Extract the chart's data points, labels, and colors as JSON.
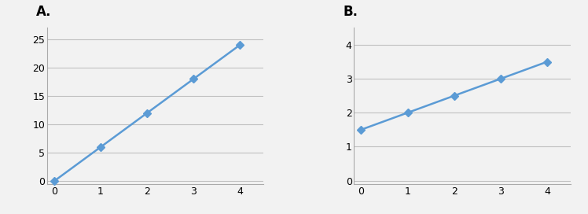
{
  "graph_A": {
    "label": "A.",
    "x": [
      0,
      1,
      2,
      3,
      4
    ],
    "y": [
      0,
      6,
      12,
      18,
      24
    ],
    "xlim": [
      -0.15,
      4.5
    ],
    "ylim": [
      -0.5,
      27
    ],
    "yticks": [
      0,
      5,
      10,
      15,
      20,
      25
    ],
    "xticks": [
      0,
      1,
      2,
      3,
      4
    ]
  },
  "graph_B": {
    "label": "B.",
    "x": [
      0,
      1,
      2,
      3,
      4
    ],
    "y": [
      1.5,
      2.0,
      2.5,
      3.0,
      3.5
    ],
    "xlim": [
      -0.15,
      4.5
    ],
    "ylim": [
      -0.1,
      4.5
    ],
    "yticks": [
      0,
      1,
      2,
      3,
      4
    ],
    "xticks": [
      0,
      1,
      2,
      3,
      4
    ]
  },
  "line_color": "#5b9bd5",
  "marker": "D",
  "marker_size": 5,
  "line_width": 1.8,
  "background_color": "#f2f2f2",
  "plot_bg_color": "#f2f2f2",
  "grid_color": "#c0c0c0",
  "spine_color": "#aaaaaa",
  "label_fontsize": 12,
  "label_fontweight": "bold",
  "tick_fontsize": 9
}
